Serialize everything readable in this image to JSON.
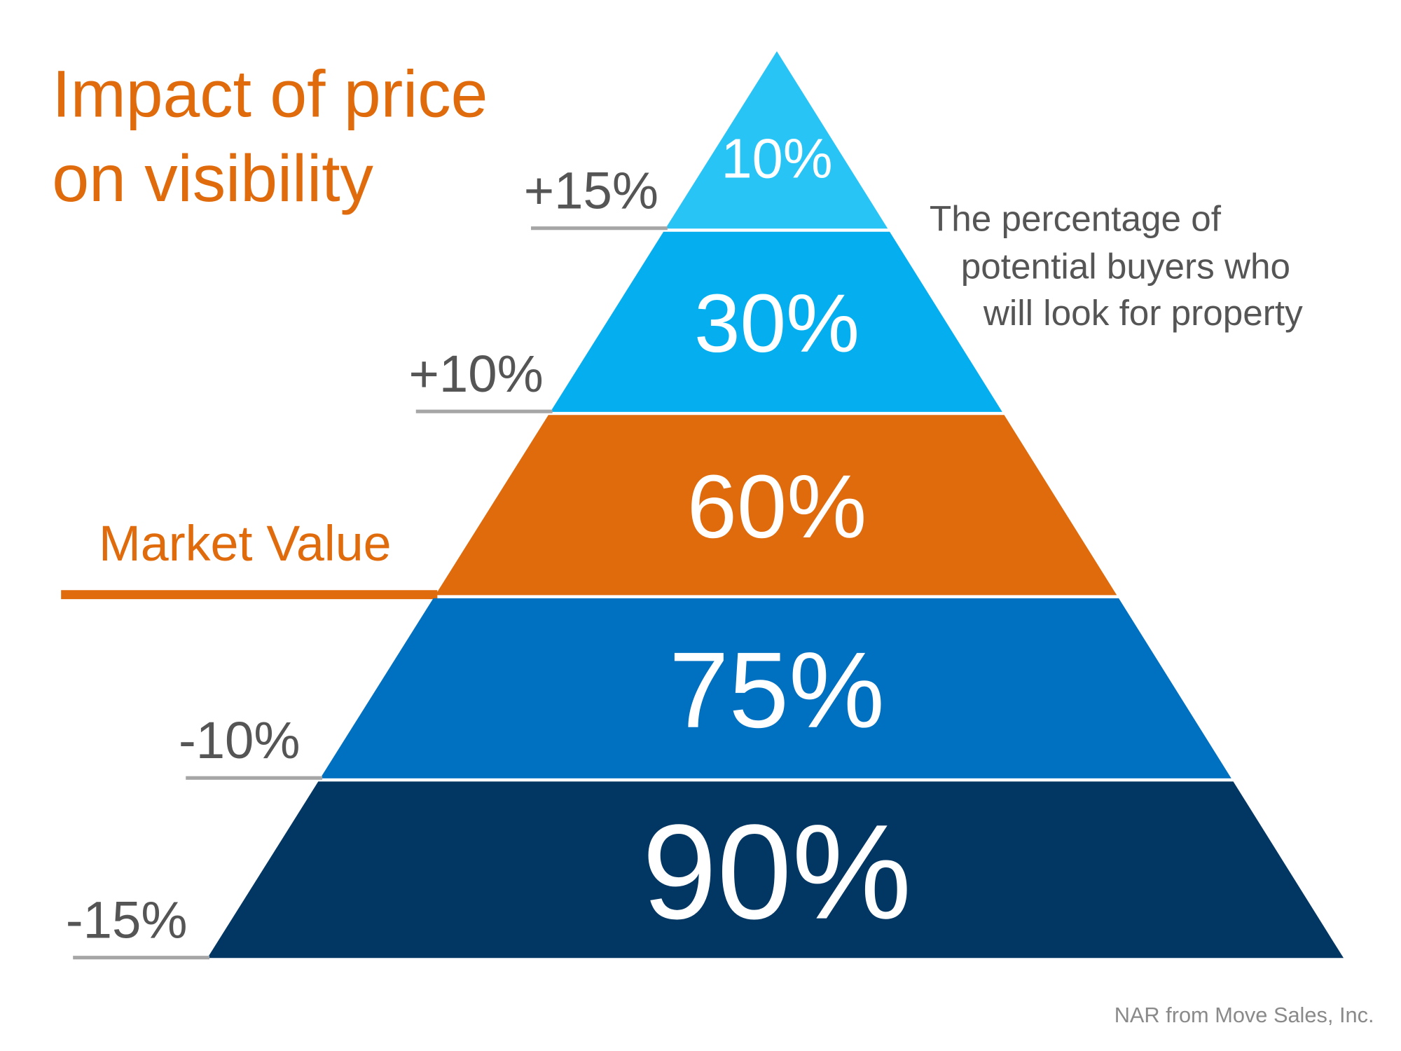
{
  "title_line1": "Impact of price",
  "title_line2": "on visibility",
  "description": [
    "The percentage of",
    "potential buyers who",
    "will look for property"
  ],
  "source": "NAR from Move Sales, Inc.",
  "colors": {
    "title": "#E06B0C",
    "label": "#555555",
    "rule": "#A6A6A6",
    "bands": [
      "#29C4F6",
      "#05AFEF",
      "#E06B0C",
      "#0070C0",
      "#033763"
    ]
  },
  "chart_data": {
    "type": "pyramid",
    "title": "Impact of price on visibility",
    "categories": [
      "+15%",
      "+10%",
      "Market Value",
      "-10%",
      "-15%"
    ],
    "values": [
      10,
      30,
      60,
      75,
      90
    ],
    "value_labels": [
      "10%",
      "30%",
      "60%",
      "75%",
      "90%"
    ],
    "unit": "%"
  }
}
